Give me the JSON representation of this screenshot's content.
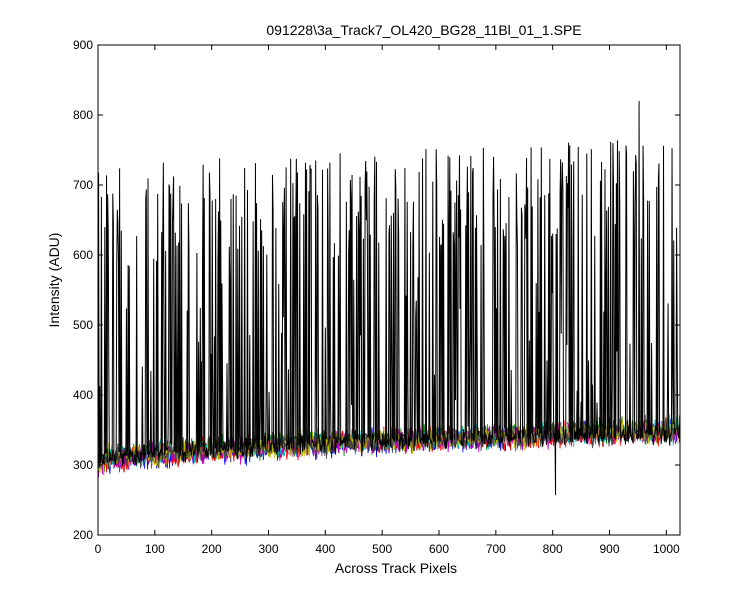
{
  "chart_data": {
    "type": "line",
    "title": "091228\\3a_Track7_OL420_BG28_11Bl_01_1.SPE",
    "xlabel": "Across Track Pixels",
    "ylabel": "Intensity (ADU)",
    "xlim": [
      0,
      1024
    ],
    "ylim": [
      200,
      900
    ],
    "xticks": [
      0,
      100,
      200,
      300,
      400,
      500,
      600,
      700,
      800,
      900,
      1000
    ],
    "yticks": [
      200,
      300,
      400,
      500,
      600,
      700,
      800,
      900
    ],
    "grid": false,
    "legend": "none",
    "series": [
      {
        "color": "#000000",
        "style": "spiky",
        "description_values": {
          "x_range": [
            0,
            1024
          ],
          "baseline_start": 305,
          "baseline_end": 345,
          "peak_min": 580,
          "peak_max": 820,
          "max_point": [
            952,
            820
          ],
          "min_point": [
            805,
            257
          ]
        }
      },
      {
        "color": "#0000ff",
        "style": "noise",
        "description_values": {
          "baseline_start": 295,
          "baseline_end": 350
        }
      },
      {
        "color": "#008000",
        "style": "noise",
        "description_values": {
          "baseline_start": 300,
          "baseline_end": 352
        }
      },
      {
        "color": "#ff0000",
        "style": "noise",
        "description_values": {
          "baseline_start": 298,
          "baseline_end": 348
        }
      },
      {
        "color": "#00bfbf",
        "style": "noise",
        "description_values": {
          "baseline_start": 302,
          "baseline_end": 350
        }
      },
      {
        "color": "#bf00bf",
        "style": "noise",
        "description_values": {
          "baseline_start": 299,
          "baseline_end": 349
        }
      },
      {
        "color": "#bfbf00",
        "style": "noise",
        "description_values": {
          "baseline_start": 301,
          "baseline_end": 351
        }
      },
      {
        "color": "#404040",
        "style": "noise",
        "description_values": {
          "baseline_start": 303,
          "baseline_end": 347
        }
      }
    ]
  }
}
